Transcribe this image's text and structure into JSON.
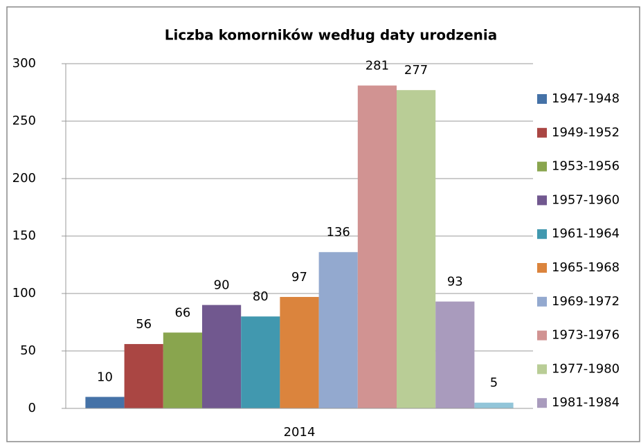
{
  "chart_data": {
    "type": "bar",
    "title": "Liczba komorników według daty urodzenia",
    "categories": [
      "2014"
    ],
    "series": [
      {
        "name": "1947-1948",
        "color": "#4572a7",
        "values": [
          10
        ]
      },
      {
        "name": "1949-1952",
        "color": "#aa4643",
        "values": [
          56
        ]
      },
      {
        "name": "1953-1956",
        "color": "#89a54e",
        "values": [
          66
        ]
      },
      {
        "name": "1957-1960",
        "color": "#71588f",
        "values": [
          90
        ]
      },
      {
        "name": "1961-1964",
        "color": "#4198af",
        "values": [
          80
        ]
      },
      {
        "name": "1965-1968",
        "color": "#db843d",
        "values": [
          97
        ]
      },
      {
        "name": "1969-1972",
        "color": "#93a9cf",
        "values": [
          136
        ]
      },
      {
        "name": "1973-1976",
        "color": "#d19392",
        "values": [
          281
        ]
      },
      {
        "name": "1977-1980",
        "color": "#b9cd96",
        "values": [
          277
        ]
      },
      {
        "name": "1981-1984",
        "color": "#a99bbd",
        "values": [
          93
        ]
      },
      {
        "name": null,
        "color": "#92c5d9",
        "values": [
          5
        ]
      }
    ],
    "ylim": [
      0,
      300
    ],
    "yticks": [
      0,
      50,
      100,
      150,
      200,
      250,
      300
    ],
    "grid": true,
    "legend": "right"
  }
}
